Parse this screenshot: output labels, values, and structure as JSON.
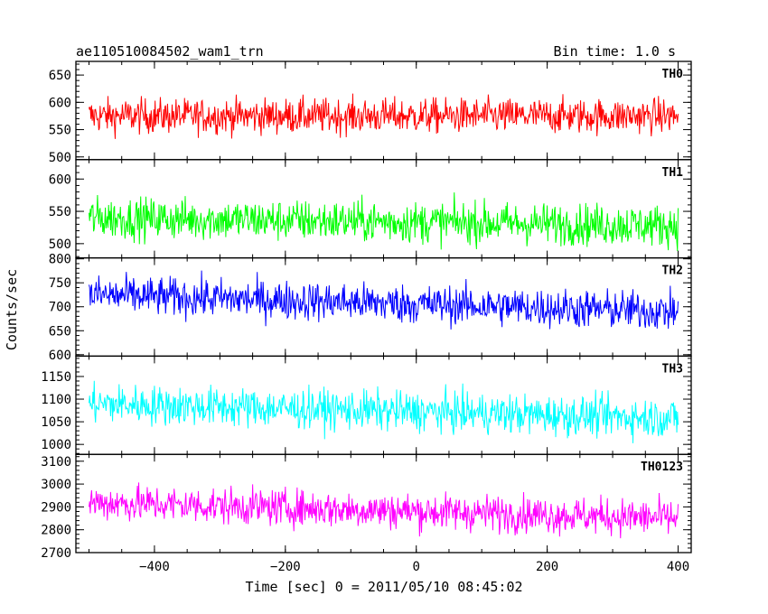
{
  "header": {
    "title": "ae110510084502_wam1_trn",
    "bin_time": "Bin time: 1.0 s"
  },
  "chart_data": {
    "type": "line",
    "xlabel": "Time [sec] 0 = 2011/05/10 08:45:02",
    "ylabel": "Counts/sec",
    "xlim": [
      -520,
      420
    ],
    "x_ticks": [
      -400,
      -200,
      0,
      200,
      400
    ],
    "x_range": [
      -500,
      400
    ],
    "panels": [
      {
        "name": "TH0",
        "color": "#ff0000",
        "ylim": [
          495,
          675
        ],
        "y_ticks": [
          500,
          550,
          600,
          650
        ],
        "mean_start": 575,
        "mean_end": 575,
        "noise": 22
      },
      {
        "name": "TH1",
        "color": "#00ff00",
        "ylim": [
          478,
          630
        ],
        "y_ticks": [
          500,
          550,
          600
        ],
        "mean_start": 540,
        "mean_end": 528,
        "noise": 22
      },
      {
        "name": "TH2",
        "color": "#0000ff",
        "ylim": [
          597,
          802
        ],
        "y_ticks": [
          600,
          650,
          700,
          750,
          800
        ],
        "mean_start": 725,
        "mean_end": 690,
        "noise": 28
      },
      {
        "name": "TH3",
        "color": "#00ffff",
        "ylim": [
          978,
          1195
        ],
        "y_ticks": [
          1000,
          1050,
          1100,
          1150
        ],
        "mean_start": 1090,
        "mean_end": 1058,
        "noise": 30
      },
      {
        "name": "TH0123",
        "color": "#ff00ff",
        "ylim": [
          2700,
          3130
        ],
        "y_ticks": [
          2700,
          2800,
          2900,
          3000,
          3100
        ],
        "mean_start": 2920,
        "mean_end": 2850,
        "noise": 55
      }
    ]
  }
}
